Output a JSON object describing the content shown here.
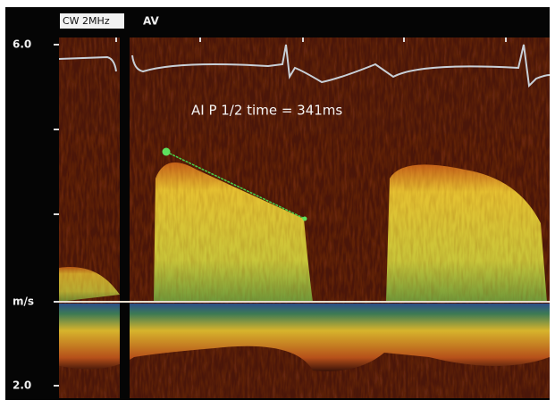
{
  "header": {
    "mode": "CW 2MHz",
    "label": "AV"
  },
  "scale": {
    "top": "6.0",
    "unit": "m/s",
    "bottom": "2.0"
  },
  "annotation": "AI P 1/2 time = 341ms"
}
